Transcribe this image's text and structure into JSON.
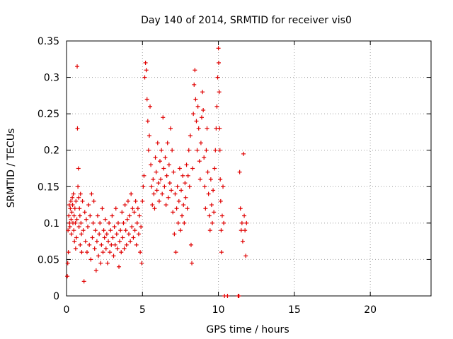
{
  "chart_data": {
    "type": "scatter",
    "title": "Day 140 of 2014, SRMTID for receiver vis0",
    "xlabel": "GPS time / hours",
    "ylabel": "SRMTID / TECUs",
    "xlim": [
      0,
      24
    ],
    "ylim": [
      0,
      0.35
    ],
    "xticks": [
      0,
      5,
      10,
      15,
      20
    ],
    "yticks": [
      0,
      0.05,
      0.1,
      0.15,
      0.2,
      0.25,
      0.3,
      0.35
    ],
    "grid": true,
    "marker": "+",
    "color": "#e00000",
    "series": [
      {
        "name": "SRMTID",
        "points": [
          [
            0.05,
            0.027
          ],
          [
            0.08,
            0.045
          ],
          [
            0.1,
            0.09
          ],
          [
            0.12,
            0.06
          ],
          [
            0.15,
            0.11
          ],
          [
            0.18,
            0.125
          ],
          [
            0.2,
            0.1
          ],
          [
            0.22,
            0.095
          ],
          [
            0.25,
            0.12
          ],
          [
            0.28,
            0.13
          ],
          [
            0.3,
            0.105
          ],
          [
            0.32,
            0.085
          ],
          [
            0.35,
            0.115
          ],
          [
            0.38,
            0.135
          ],
          [
            0.4,
            0.125
          ],
          [
            0.42,
            0.1
          ],
          [
            0.45,
            0.14
          ],
          [
            0.48,
            0.09
          ],
          [
            0.5,
            0.11
          ],
          [
            0.52,
            0.075
          ],
          [
            0.55,
            0.12
          ],
          [
            0.58,
            0.1
          ],
          [
            0.6,
            0.065
          ],
          [
            0.62,
            0.13
          ],
          [
            0.65,
            0.08
          ],
          [
            0.68,
            0.105
          ],
          [
            0.7,
            0.315
          ],
          [
            0.72,
            0.23
          ],
          [
            0.75,
            0.15
          ],
          [
            0.78,
            0.175
          ],
          [
            0.8,
            0.135
          ],
          [
            0.82,
            0.095
          ],
          [
            0.85,
            0.12
          ],
          [
            0.88,
            0.11
          ],
          [
            0.9,
            0.07
          ],
          [
            0.92,
            0.14
          ],
          [
            0.95,
            0.1
          ],
          [
            0.98,
            0.085
          ],
          [
            1.0,
            0.06
          ],
          [
            1.05,
            0.13
          ],
          [
            1.1,
            0.09
          ],
          [
            1.15,
            0.02
          ],
          [
            1.2,
            0.115
          ],
          [
            1.25,
            0.075
          ],
          [
            1.3,
            0.105
          ],
          [
            1.35,
            0.06
          ],
          [
            1.4,
            0.095
          ],
          [
            1.45,
            0.125
          ],
          [
            1.5,
            0.07
          ],
          [
            1.55,
            0.11
          ],
          [
            1.6,
            0.05
          ],
          [
            1.65,
            0.14
          ],
          [
            1.7,
            0.08
          ],
          [
            1.75,
            0.1
          ],
          [
            1.8,
            0.13
          ],
          [
            1.85,
            0.065
          ],
          [
            1.9,
            0.09
          ],
          [
            1.95,
            0.035
          ],
          [
            2.0,
            0.075
          ],
          [
            2.05,
            0.11
          ],
          [
            2.1,
            0.055
          ],
          [
            2.15,
            0.085
          ],
          [
            2.2,
            0.1
          ],
          [
            2.25,
            0.045
          ],
          [
            2.3,
            0.07
          ],
          [
            2.35,
            0.12
          ],
          [
            2.4,
            0.06
          ],
          [
            2.45,
            0.09
          ],
          [
            2.5,
            0.08
          ],
          [
            2.55,
            0.105
          ],
          [
            2.6,
            0.065
          ],
          [
            2.65,
            0.085
          ],
          [
            2.7,
            0.045
          ],
          [
            2.75,
            0.075
          ],
          [
            2.8,
            0.1
          ],
          [
            2.85,
            0.06
          ],
          [
            2.9,
            0.09
          ],
          [
            2.95,
            0.07
          ],
          [
            3.0,
            0.11
          ],
          [
            3.05,
            0.08
          ],
          [
            3.1,
            0.055
          ],
          [
            3.15,
            0.095
          ],
          [
            3.2,
            0.07
          ],
          [
            3.25,
            0.12
          ],
          [
            3.3,
            0.085
          ],
          [
            3.35,
            0.065
          ],
          [
            3.4,
            0.1
          ],
          [
            3.45,
            0.04
          ],
          [
            3.5,
            0.075
          ],
          [
            3.55,
            0.09
          ],
          [
            3.6,
            0.06
          ],
          [
            3.65,
            0.115
          ],
          [
            3.7,
            0.08
          ],
          [
            3.75,
            0.1
          ],
          [
            3.8,
            0.065
          ],
          [
            3.85,
            0.125
          ],
          [
            3.9,
            0.09
          ],
          [
            3.95,
            0.07
          ],
          [
            4.0,
            0.105
          ],
          [
            4.05,
            0.13
          ],
          [
            4.1,
            0.085
          ],
          [
            4.15,
            0.11
          ],
          [
            4.2,
            0.075
          ],
          [
            4.25,
            0.14
          ],
          [
            4.3,
            0.095
          ],
          [
            4.35,
            0.12
          ],
          [
            4.4,
            0.08
          ],
          [
            4.45,
            0.115
          ],
          [
            4.5,
            0.09
          ],
          [
            4.55,
            0.13
          ],
          [
            4.6,
            0.07
          ],
          [
            4.65,
            0.1
          ],
          [
            4.7,
            0.12
          ],
          [
            4.75,
            0.085
          ],
          [
            4.8,
            0.11
          ],
          [
            4.85,
            0.06
          ],
          [
            4.9,
            0.095
          ],
          [
            4.95,
            0.045
          ],
          [
            5.0,
            0.13
          ],
          [
            5.05,
            0.15
          ],
          [
            5.1,
            0.165
          ],
          [
            5.15,
            0.3
          ],
          [
            5.2,
            0.32
          ],
          [
            5.25,
            0.31
          ],
          [
            5.3,
            0.27
          ],
          [
            5.35,
            0.24
          ],
          [
            5.4,
            0.2
          ],
          [
            5.45,
            0.22
          ],
          [
            5.5,
            0.26
          ],
          [
            5.55,
            0.18
          ],
          [
            5.6,
            0.15
          ],
          [
            5.65,
            0.125
          ],
          [
            5.7,
            0.16
          ],
          [
            5.75,
            0.14
          ],
          [
            5.8,
            0.12
          ],
          [
            5.85,
            0.19
          ],
          [
            5.9,
            0.17
          ],
          [
            5.95,
            0.145
          ],
          [
            6.0,
            0.21
          ],
          [
            6.05,
            0.155
          ],
          [
            6.1,
            0.13
          ],
          [
            6.15,
            0.185
          ],
          [
            6.2,
            0.16
          ],
          [
            6.25,
            0.2
          ],
          [
            6.3,
            0.14
          ],
          [
            6.35,
            0.245
          ],
          [
            6.4,
            0.175
          ],
          [
            6.45,
            0.15
          ],
          [
            6.5,
            0.19
          ],
          [
            6.55,
            0.125
          ],
          [
            6.6,
            0.165
          ],
          [
            6.65,
            0.21
          ],
          [
            6.7,
            0.135
          ],
          [
            6.75,
            0.18
          ],
          [
            6.8,
            0.155
          ],
          [
            6.85,
            0.23
          ],
          [
            6.9,
            0.145
          ],
          [
            6.95,
            0.2
          ],
          [
            7.0,
            0.115
          ],
          [
            7.05,
            0.17
          ],
          [
            7.1,
            0.085
          ],
          [
            7.15,
            0.14
          ],
          [
            7.2,
            0.06
          ],
          [
            7.25,
            0.12
          ],
          [
            7.3,
            0.15
          ],
          [
            7.35,
            0.1
          ],
          [
            7.4,
            0.13
          ],
          [
            7.45,
            0.175
          ],
          [
            7.5,
            0.09
          ],
          [
            7.55,
            0.145
          ],
          [
            7.6,
            0.11
          ],
          [
            7.65,
            0.165
          ],
          [
            7.7,
            0.125
          ],
          [
            7.75,
            0.1
          ],
          [
            7.8,
            0.155
          ],
          [
            7.85,
            0.135
          ],
          [
            7.9,
            0.18
          ],
          [
            7.95,
            0.12
          ],
          [
            8.0,
            0.165
          ],
          [
            8.05,
            0.2
          ],
          [
            8.1,
            0.15
          ],
          [
            8.15,
            0.22
          ],
          [
            8.2,
            0.07
          ],
          [
            8.25,
            0.045
          ],
          [
            8.3,
            0.175
          ],
          [
            8.35,
            0.25
          ],
          [
            8.4,
            0.29
          ],
          [
            8.45,
            0.31
          ],
          [
            8.5,
            0.27
          ],
          [
            8.55,
            0.24
          ],
          [
            8.6,
            0.2
          ],
          [
            8.65,
            0.26
          ],
          [
            8.7,
            0.23
          ],
          [
            8.75,
            0.185
          ],
          [
            8.8,
            0.16
          ],
          [
            8.85,
            0.21
          ],
          [
            8.9,
            0.245
          ],
          [
            8.95,
            0.28
          ],
          [
            9.0,
            0.255
          ],
          [
            9.05,
            0.19
          ],
          [
            9.1,
            0.15
          ],
          [
            9.15,
            0.12
          ],
          [
            9.2,
            0.2
          ],
          [
            9.25,
            0.23
          ],
          [
            9.3,
            0.17
          ],
          [
            9.35,
            0.14
          ],
          [
            9.4,
            0.11
          ],
          [
            9.45,
            0.09
          ],
          [
            9.5,
            0.16
          ],
          [
            9.55,
            0.125
          ],
          [
            9.6,
            0.1
          ],
          [
            9.65,
            0.145
          ],
          [
            9.7,
            0.115
          ],
          [
            9.75,
            0.175
          ],
          [
            9.8,
            0.2
          ],
          [
            9.85,
            0.23
          ],
          [
            9.9,
            0.26
          ],
          [
            9.95,
            0.3
          ],
          [
            10.0,
            0.34
          ],
          [
            10.02,
            0.32
          ],
          [
            10.05,
            0.28
          ],
          [
            10.08,
            0.23
          ],
          [
            10.1,
            0.2
          ],
          [
            10.12,
            0.16
          ],
          [
            10.15,
            0.13
          ],
          [
            10.18,
            0.09
          ],
          [
            10.2,
            0.06
          ],
          [
            10.25,
            0.11
          ],
          [
            10.3,
            0.15
          ],
          [
            10.35,
            0.1
          ],
          [
            10.4,
            0.0
          ],
          [
            10.6,
            0.0
          ],
          [
            11.3,
            0.0
          ],
          [
            11.35,
            0.0
          ],
          [
            11.4,
            0.17
          ],
          [
            11.45,
            0.12
          ],
          [
            11.5,
            0.09
          ],
          [
            11.55,
            0.1
          ],
          [
            11.6,
            0.075
          ],
          [
            11.65,
            0.195
          ],
          [
            11.7,
            0.11
          ],
          [
            11.75,
            0.09
          ],
          [
            11.8,
            0.055
          ],
          [
            11.85,
            0.1
          ]
        ]
      }
    ]
  }
}
